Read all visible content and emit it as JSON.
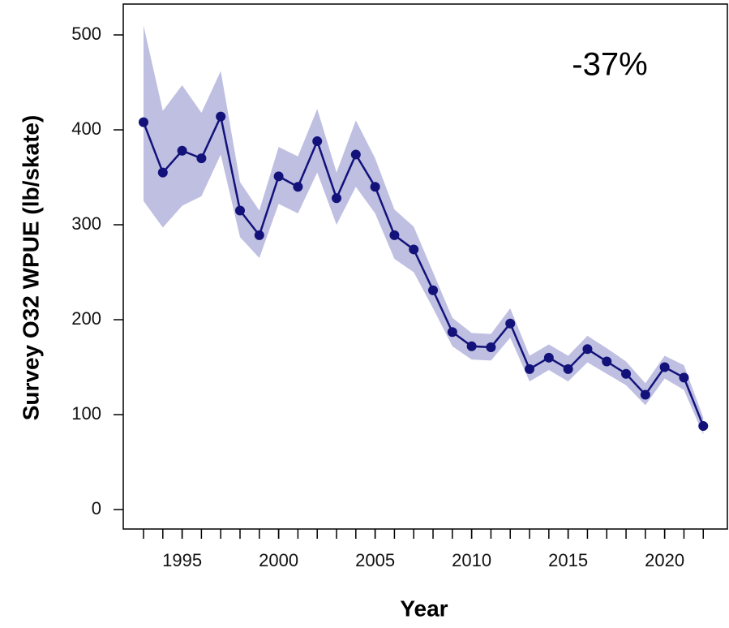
{
  "chart_data": {
    "type": "line",
    "xlabel": "Year",
    "ylabel": "Survey O32 WPUE (lb/skate)",
    "annotation": "-37%",
    "x": [
      1993,
      1994,
      1995,
      1996,
      1997,
      1998,
      1999,
      2000,
      2001,
      2002,
      2003,
      2004,
      2005,
      2006,
      2007,
      2008,
      2009,
      2010,
      2011,
      2012,
      2013,
      2014,
      2015,
      2016,
      2017,
      2018,
      2019,
      2020,
      2021,
      2022
    ],
    "values": [
      408,
      355,
      378,
      370,
      414,
      315,
      289,
      351,
      340,
      388,
      328,
      374,
      340,
      289,
      274,
      231,
      187,
      172,
      171,
      196,
      148,
      160,
      148,
      169,
      156,
      143,
      121,
      150,
      139,
      88
    ],
    "band": {
      "upper": [
        510,
        420,
        447,
        418,
        462,
        345,
        315,
        382,
        372,
        422,
        355,
        410,
        370,
        316,
        298,
        250,
        202,
        186,
        185,
        212,
        162,
        174,
        162,
        183,
        170,
        156,
        133,
        162,
        152,
        97
      ],
      "lower": [
        325,
        297,
        320,
        330,
        374,
        287,
        265,
        322,
        312,
        355,
        300,
        340,
        312,
        264,
        250,
        212,
        172,
        158,
        157,
        181,
        135,
        147,
        135,
        155,
        143,
        131,
        110,
        138,
        126,
        79
      ]
    },
    "color": "#12127a",
    "band_color": "#bfbfe2",
    "xlim": [
      1991.95,
      2023.25
    ],
    "ylim": [
      -20.5,
      532.5
    ],
    "xticks": [
      1995,
      2000,
      2005,
      2010,
      2015,
      2020
    ],
    "yticks": [
      0,
      100,
      200,
      300,
      400,
      500
    ]
  }
}
